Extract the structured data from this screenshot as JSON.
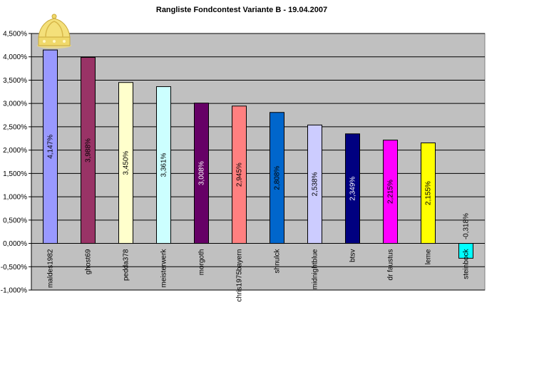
{
  "chart_data": {
    "type": "bar",
    "title": "Rangliste Fondcontest Variante B - 19.04.2007",
    "xlabel": "",
    "ylabel": "",
    "ylim": [
      -1.0,
      4.5
    ],
    "yticks": [
      -1.0,
      -0.5,
      0.0,
      0.5,
      1.0,
      1.5,
      2.0,
      2.5,
      3.0,
      3.5,
      4.0,
      4.5
    ],
    "ytick_labels": [
      "-1,000%",
      "-0,500%",
      "0,000%",
      "0,500%",
      "1,000%",
      "1,500%",
      "2,000%",
      "2,500%",
      "3,000%",
      "3,500%",
      "4,000%",
      "4,500%"
    ],
    "grid": true,
    "legend": "none",
    "plot_background": "#c0c0c0",
    "categories": [
      "maldes1982",
      "ghost69",
      "pedda378",
      "meisterwerk",
      "morgoth",
      "chris1975bayern",
      "shnulck",
      "midnightblue",
      "btsv",
      "dr faustus",
      "leme",
      "steinbock"
    ],
    "values": [
      4.147,
      3.988,
      3.45,
      3.361,
      3.008,
      2.945,
      2.808,
      2.538,
      2.349,
      2.215,
      2.155,
      -0.318
    ],
    "labels": [
      "4,147%",
      "3,988%",
      "3,450%",
      "3,361%",
      "3,008%",
      "2,945%",
      "2,808%",
      "2,538%",
      "2,349%",
      "2,215%",
      "2,155%",
      "-0,318%"
    ],
    "colors": [
      "#9999ff",
      "#993366",
      "#ffffcc",
      "#ccffff",
      "#660066",
      "#ff8080",
      "#0066cc",
      "#ccccff",
      "#000080",
      "#ff00ff",
      "#ffff00",
      "#00ffff"
    ],
    "label_colors": [
      "#000000",
      "#000000",
      "#000000",
      "#000000",
      "#ffffff",
      "#000000",
      "#000000",
      "#000000",
      "#ffffff",
      "#000000",
      "#000000",
      "#000000"
    ]
  },
  "decoration": {
    "crown_icon": "crown-icon"
  }
}
